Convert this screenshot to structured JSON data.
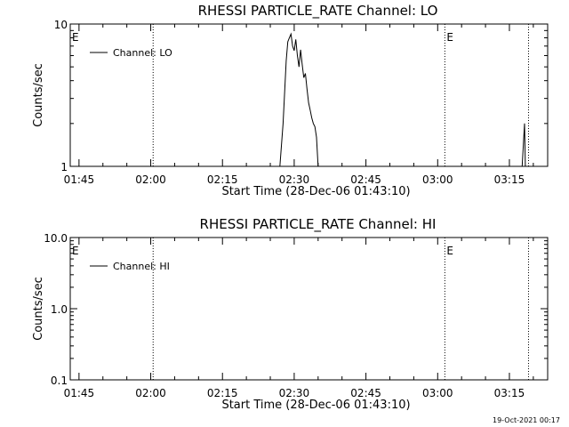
{
  "chart_data": [
    {
      "type": "line",
      "title": "RHESSI PARTICLE_RATE Channel: LO",
      "xlabel": "Start Time (28-Dec-06 01:43:10)",
      "ylabel": "Counts/sec",
      "yscale": "log",
      "xlim": [
        "01:43:10",
        "03:23:00"
      ],
      "ylim": [
        1,
        10
      ],
      "xticks": [
        "01:45",
        "02:00",
        "02:15",
        "02:30",
        "02:45",
        "03:00",
        "03:15"
      ],
      "yticks": [
        "1",
        "10"
      ],
      "legend": {
        "location": "top-left",
        "entries": [
          "Channel: LO"
        ]
      },
      "vlines": [
        "02:00:30",
        "03:01:30",
        "03:19:00"
      ],
      "flags": [
        {
          "label": "E",
          "time": "01:43:10"
        },
        {
          "label": "E",
          "time": "03:01:30"
        }
      ],
      "series": [
        {
          "name": "Channel: LO",
          "color": "#000000",
          "points": [
            [
              "02:27:00",
              1.0
            ],
            [
              "02:27:40",
              2.0
            ],
            [
              "02:28:20",
              5.5
            ],
            [
              "02:28:40",
              7.5
            ],
            [
              "02:29:00",
              8.0
            ],
            [
              "02:29:20",
              8.5
            ],
            [
              "02:29:40",
              7.0
            ],
            [
              "02:30:00",
              6.5
            ],
            [
              "02:30:20",
              7.8
            ],
            [
              "02:30:40",
              6.0
            ],
            [
              "02:31:00",
              5.0
            ],
            [
              "02:31:20",
              6.6
            ],
            [
              "02:31:40",
              5.2
            ],
            [
              "02:32:00",
              4.2
            ],
            [
              "02:32:20",
              4.5
            ],
            [
              "02:32:40",
              3.5
            ],
            [
              "02:33:00",
              2.8
            ],
            [
              "02:33:20",
              2.5
            ],
            [
              "02:33:40",
              2.2
            ],
            [
              "02:34:00",
              2.0
            ],
            [
              "02:34:20",
              1.9
            ],
            [
              "02:34:40",
              1.6
            ],
            [
              "02:35:00",
              1.0
            ]
          ],
          "spike": [
            [
              "03:17:40",
              1.0
            ],
            [
              "03:18:10",
              2.0
            ],
            [
              "03:18:20",
              1.0
            ]
          ]
        }
      ]
    },
    {
      "type": "line",
      "title": "RHESSI PARTICLE_RATE Channel: HI",
      "xlabel": "Start Time (28-Dec-06 01:43:10)",
      "ylabel": "Counts/sec",
      "yscale": "log",
      "xlim": [
        "01:43:10",
        "03:23:00"
      ],
      "ylim": [
        0.1,
        10
      ],
      "xticks": [
        "01:45",
        "02:00",
        "02:15",
        "02:30",
        "02:45",
        "03:00",
        "03:15"
      ],
      "yticks": [
        "0.1",
        "1.0",
        "10.0"
      ],
      "legend": {
        "location": "top-left",
        "entries": [
          "Channel: HI"
        ]
      },
      "vlines": [
        "02:00:30",
        "03:01:30",
        "03:19:00"
      ],
      "flags": [
        {
          "label": "E",
          "time": "01:43:10"
        },
        {
          "label": "E",
          "time": "03:01:30"
        }
      ],
      "series": [
        {
          "name": "Channel: HI",
          "color": "#000000",
          "points": []
        }
      ]
    }
  ],
  "timestamp": "19-Oct-2021 00:17"
}
